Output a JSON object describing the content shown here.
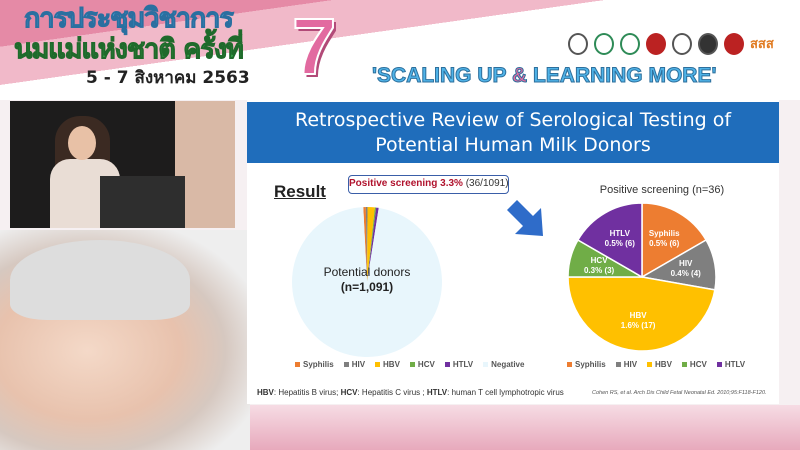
{
  "banner": {
    "thai_line1": "การประชุมวิชาการ",
    "thai_line2": "นมแม่แห่งชาติ ครั้งที่",
    "thai_date": "5 - 7 สิงหาคม 2563",
    "number": "7",
    "slogan_part1": "'SCALING UP ",
    "slogan_amp": "&",
    "slogan_part2": " LEARNING MORE'",
    "logo_text": "สสส"
  },
  "slide": {
    "title_line1": "Retrospective Review of Serological Testing of",
    "title_line2": "Potential Human Milk Donors",
    "result_heading": "Result",
    "callout_bold": "Positive screening 3.3%",
    "callout_rest": " (36/1091)",
    "abbr_hbv": "HBV",
    "abbr_hbv_text": ": Hepatitis B virus; ",
    "abbr_hcv": "HCV",
    "abbr_hcv_text": ": Hepatitis C virus ; ",
    "abbr_htlv": "HTLV",
    "abbr_htlv_text": ": human T cell lymphotropic virus",
    "citation": "Cohen RS, et al. Arch Dis Child Fetal Neonatal Ed. 2010;95:F118-F120."
  },
  "chart_data": [
    {
      "type": "pie",
      "center_label_line1": "Potential donors",
      "center_label_line2": "(n=1,091)",
      "categories": [
        "Syphilis",
        "HIV",
        "HBV",
        "HCV",
        "HTLV",
        "Negative"
      ],
      "values": [
        6,
        4,
        17,
        3,
        6,
        1055
      ],
      "colors": [
        "#ed7d31",
        "#7f7f7f",
        "#ffc000",
        "#70ad47",
        "#7030a0",
        "#e8f6fc"
      ],
      "legend": "bottom"
    },
    {
      "type": "pie",
      "title": "Positive screening (n=36)",
      "categories": [
        "Syphilis",
        "HIV",
        "HBV",
        "HCV",
        "HTLV"
      ],
      "values": [
        6,
        4,
        17,
        3,
        6
      ],
      "data_labels": [
        "0.5% (6)",
        "0.4% (4)",
        "1.6% (17)",
        "0.3% (3)",
        "0.5% (6)"
      ],
      "colors": [
        "#ed7d31",
        "#7f7f7f",
        "#ffc000",
        "#70ad47",
        "#7030a0"
      ],
      "legend": "bottom"
    }
  ]
}
